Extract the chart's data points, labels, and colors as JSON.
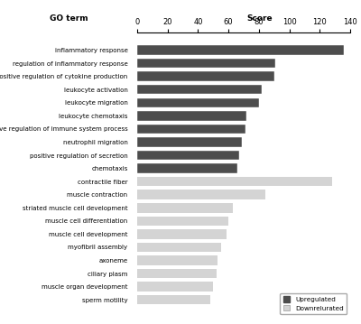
{
  "categories": [
    "inflammatory response",
    "regulation of inflammatory response",
    "positive regulation of cytokine production",
    "leukocyte activation",
    "leukocyte migration",
    "leukocyte chemotaxis",
    "negative regulation of immune system process",
    "neutrophil migration",
    "positive regulation of secretion",
    "chemotaxis",
    "contractile fiber",
    "muscle contraction",
    "striated muscle cell development",
    "muscle cell differentiation",
    "muscle cell development",
    "myofibril assembly",
    "axoneme",
    "ciliary plasm",
    "muscle organ development",
    "sperm motility"
  ],
  "values": [
    136,
    91,
    90,
    82,
    80,
    72,
    71,
    69,
    67,
    66,
    128,
    84,
    63,
    60,
    59,
    55,
    53,
    52,
    50,
    48
  ],
  "colors": [
    "#4d4d4d",
    "#4d4d4d",
    "#4d4d4d",
    "#4d4d4d",
    "#4d4d4d",
    "#4d4d4d",
    "#4d4d4d",
    "#4d4d4d",
    "#4d4d4d",
    "#4d4d4d",
    "#d4d4d4",
    "#d4d4d4",
    "#d4d4d4",
    "#d4d4d4",
    "#d4d4d4",
    "#d4d4d4",
    "#d4d4d4",
    "#d4d4d4",
    "#d4d4d4",
    "#d4d4d4"
  ],
  "upregulated_color": "#4d4d4d",
  "downregulated_color": "#d4d4d4",
  "title_left": "GO term",
  "title_right": "Score",
  "xlim": [
    0,
    140
  ],
  "xticks": [
    0,
    20,
    40,
    60,
    80,
    100,
    120,
    140
  ],
  "legend_upregulated": "Upregulated",
  "legend_downregulated": "Downrelurated",
  "bg_color": "#ffffff"
}
